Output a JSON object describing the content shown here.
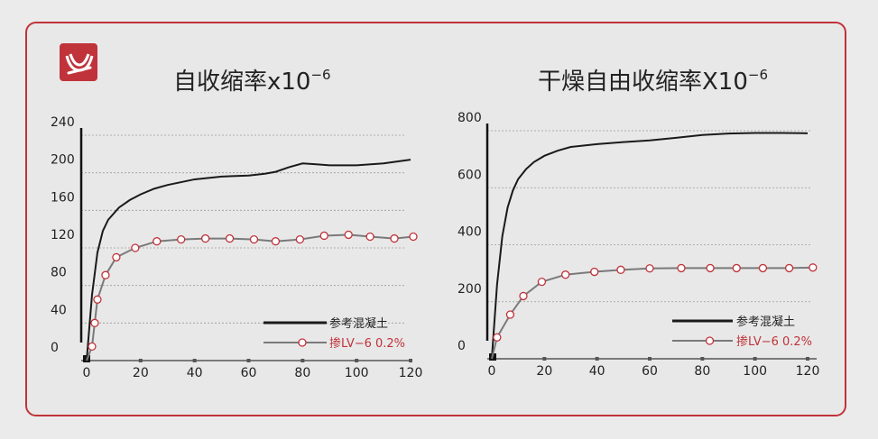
{
  "colors": {
    "accent": "#c0333a",
    "reference_line": "#1a1a1a",
    "treated_line": "#7a7a7a",
    "marker_fill": "#ffffff",
    "marker_stroke": "#c0333a",
    "grid": "#9a9a9a"
  },
  "logo": {
    "icon": "brand-logo-icon"
  },
  "chart_data": [
    {
      "type": "line",
      "title": "自收缩率x10",
      "title_exponent": "−6",
      "xlim": [
        0,
        120
      ],
      "ylim": [
        0,
        240
      ],
      "x_ticks": [
        "0",
        "20",
        "40",
        "60",
        "80",
        "100",
        "120"
      ],
      "y_ticks": [
        "0",
        "40",
        "80",
        "120",
        "160",
        "200",
        "240"
      ],
      "grid": "dashed horizontal",
      "legend_position": "bottom-right",
      "series": [
        {
          "name": "参考混凝土",
          "style": "solid-black",
          "x": [
            0,
            2,
            4,
            6,
            8,
            12,
            16,
            20,
            25,
            30,
            40,
            50,
            60,
            66,
            70,
            75,
            80,
            85,
            90,
            100,
            110,
            120
          ],
          "y": [
            0,
            70,
            115,
            138,
            150,
            163,
            171,
            177,
            183,
            187,
            193,
            196,
            197,
            199,
            201,
            206,
            210,
            209,
            208,
            208,
            210,
            214
          ]
        },
        {
          "name": "掺LV−6 0.2%",
          "style": "grey-line-red-circle",
          "x": [
            0,
            2,
            3,
            4,
            7,
            11,
            18,
            26,
            35,
            44,
            53,
            62,
            70,
            79,
            88,
            97,
            105,
            114,
            121
          ],
          "y": [
            0,
            15,
            40,
            65,
            91,
            110,
            120,
            127,
            129,
            130,
            130,
            129,
            127,
            129,
            133,
            134,
            132,
            130,
            132
          ]
        }
      ]
    },
    {
      "type": "line",
      "title": "干燥自由收缩率X10",
      "title_exponent": "−6",
      "xlim": [
        0,
        120
      ],
      "ylim": [
        0,
        800
      ],
      "x_ticks": [
        "0",
        "20",
        "40",
        "60",
        "80",
        "100",
        "120"
      ],
      "y_ticks": [
        "0",
        "200",
        "400",
        "600",
        "800"
      ],
      "grid": "dashed horizontal",
      "legend_position": "bottom-right",
      "series": [
        {
          "name": "参考混凝土",
          "style": "solid-black",
          "x": [
            0,
            2,
            4,
            6,
            8,
            10,
            13,
            16,
            20,
            25,
            30,
            40,
            50,
            60,
            70,
            80,
            90,
            100,
            110,
            120
          ],
          "y": [
            0,
            260,
            430,
            530,
            590,
            630,
            665,
            690,
            712,
            730,
            743,
            753,
            760,
            766,
            775,
            785,
            790,
            792,
            792,
            791
          ]
        },
        {
          "name": "掺LV−6 0.2%",
          "style": "grey-line-red-circle",
          "x": [
            0,
            2,
            7,
            12,
            19,
            28,
            39,
            49,
            60,
            72,
            83,
            93,
            103,
            113,
            122
          ],
          "y": [
            0,
            75,
            155,
            220,
            270,
            295,
            305,
            312,
            317,
            318,
            318,
            318,
            318,
            318,
            320
          ]
        }
      ]
    }
  ]
}
